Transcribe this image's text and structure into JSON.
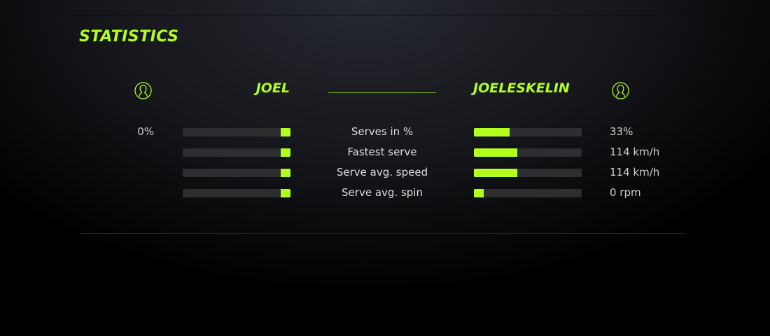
{
  "title": "STATISTICS",
  "accent": "#b2ff1e",
  "players": {
    "left": {
      "name": "JOEL",
      "icon": "user-icon"
    },
    "right": {
      "name": "JOELESKELIN",
      "icon": "user-icon"
    }
  },
  "stats": [
    {
      "label": "Serves in %",
      "left_value": "0%",
      "right_value": "33%",
      "left_fill": 0.09,
      "right_fill": 0.33
    },
    {
      "label": "Fastest serve",
      "left_value": "",
      "right_value": "114 km/h",
      "left_fill": 0.09,
      "right_fill": 0.4
    },
    {
      "label": "Serve avg. speed",
      "left_value": "",
      "right_value": "114 km/h",
      "left_fill": 0.09,
      "right_fill": 0.4
    },
    {
      "label": "Serve avg. spin",
      "left_value": "",
      "right_value": "0 rpm",
      "left_fill": 0.09,
      "right_fill": 0.09
    }
  ]
}
